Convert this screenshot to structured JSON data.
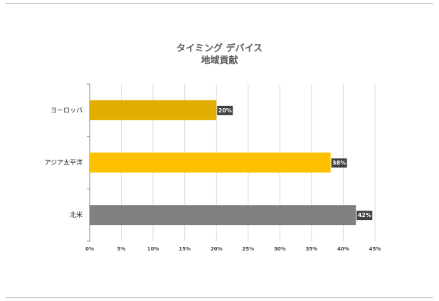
{
  "chart_data": {
    "type": "bar",
    "orientation": "horizontal",
    "title": "タイミング デバイス",
    "subtitle": "地域貢献",
    "categories": [
      "ヨーロッパ",
      "アジア太平洋",
      "北米"
    ],
    "values": [
      20,
      38,
      42
    ],
    "value_labels": [
      "20%",
      "38%",
      "42%"
    ],
    "colors": [
      "#E2AC00",
      "#FFC000",
      "#808080"
    ],
    "xlim": [
      0,
      45
    ],
    "xticks": [
      "0%",
      "5%",
      "10%",
      "15%",
      "20%",
      "25%",
      "30%",
      "35%",
      "40%",
      "45%"
    ],
    "grid": true,
    "legend": "none"
  }
}
